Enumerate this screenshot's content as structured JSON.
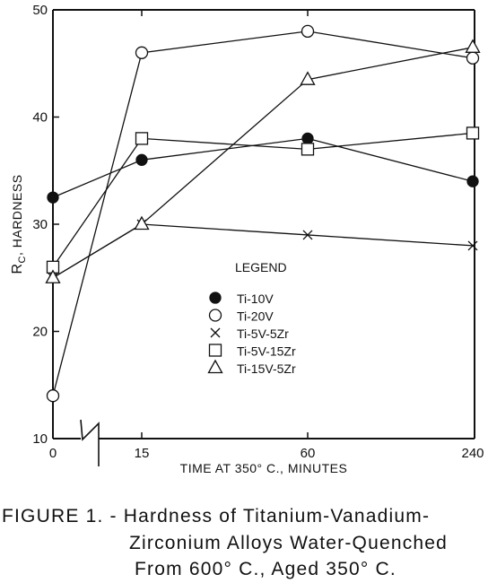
{
  "chart_data": {
    "type": "line",
    "xlabel": "TIME AT 350° C., MINUTES",
    "ylabel_main": "R",
    "ylabel_sub": "C",
    "ylabel_rest": ", HARDNESS",
    "x": [
      "0",
      "15",
      "60",
      "240"
    ],
    "ylim": [
      10,
      50
    ],
    "yticks": [
      10,
      20,
      30,
      40,
      50
    ],
    "grid": false,
    "legend_position": "center",
    "legend_title": "LEGEND",
    "series": [
      {
        "name": "Ti-10V",
        "marker": "filled-circle",
        "values": [
          32.5,
          36,
          38,
          34
        ]
      },
      {
        "name": "Ti-20V",
        "marker": "open-circle",
        "values": [
          14,
          46,
          48,
          45.5
        ]
      },
      {
        "name": "Ti-5V-5Zr",
        "marker": "x",
        "values": [
          25,
          30,
          29,
          28
        ]
      },
      {
        "name": "Ti-5V-15Zr",
        "marker": "open-square",
        "values": [
          26,
          38,
          37,
          38.5
        ]
      },
      {
        "name": "Ti-15V-5Zr",
        "marker": "open-triangle",
        "values": [
          25,
          30,
          43.5,
          46.5
        ]
      }
    ]
  },
  "caption": {
    "line1": "FIGURE 1. - Hardness of Titanium-Vanadium-",
    "line2": "Zirconium Alloys Water-Quenched",
    "line3": "From 600° C., Aged 350° C."
  }
}
